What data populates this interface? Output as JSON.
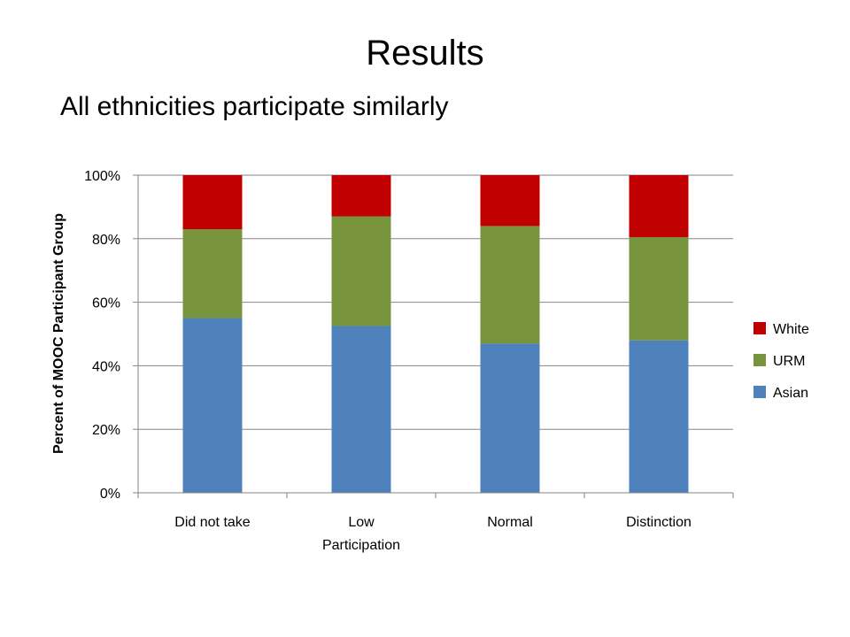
{
  "slide": {
    "title": "Results",
    "subtitle": "All ethnicities participate similarly"
  },
  "chart_data": {
    "type": "bar",
    "stacked": true,
    "percent_stacked": true,
    "categories": [
      "Did not take",
      "Low Participation",
      "Normal",
      "Distinction"
    ],
    "category_label_lines": [
      [
        "Did not take"
      ],
      [
        "Low",
        "Participation"
      ],
      [
        "Normal"
      ],
      [
        "Distinction"
      ]
    ],
    "series": [
      {
        "name": "Asian",
        "color": "#4F81BD",
        "values": [
          55,
          52.5,
          47,
          48
        ]
      },
      {
        "name": "URM",
        "color": "#77933C",
        "values": [
          28,
          34.5,
          37,
          32.5
        ]
      },
      {
        "name": "White",
        "color": "#C00000",
        "values": [
          17,
          13,
          16,
          19.5
        ]
      }
    ],
    "ylabel": "Percent of MOOC Participant Group",
    "xlabel": "",
    "ylim": [
      0,
      100
    ],
    "yticks": [
      0,
      20,
      40,
      60,
      80,
      100
    ],
    "ytick_labels": [
      "0%",
      "20%",
      "40%",
      "60%",
      "80%",
      "100%"
    ],
    "grid": true,
    "legend_position": "right",
    "legend_order": [
      "White",
      "URM",
      "Asian"
    ]
  }
}
